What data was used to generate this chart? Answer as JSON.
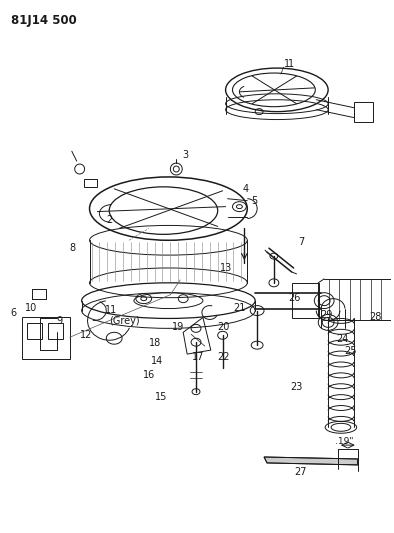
{
  "title": "81J14 500",
  "bg_color": "#ffffff",
  "line_color": "#1a1a1a",
  "title_fontsize": 8.5,
  "annotation_fontsize": 7.0,
  "fig_w": 3.94,
  "fig_h": 5.33,
  "dpi": 100
}
